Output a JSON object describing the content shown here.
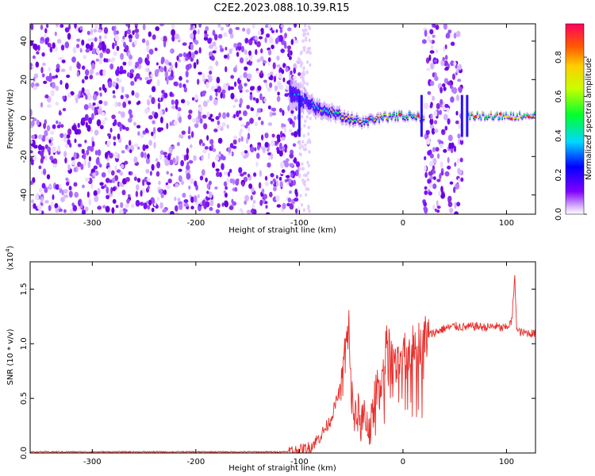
{
  "title": "C2E2.2023.088.10.39.R15",
  "chart_data": [
    {
      "type": "heatmap",
      "xlabel": "Height of straight line (km)",
      "ylabel": "Frequency (Hz)",
      "xlim": [
        -360,
        128
      ],
      "ylim": [
        -50,
        49
      ],
      "xticks": [
        -300,
        -200,
        -100,
        0,
        100
      ],
      "yticks": [
        -40,
        -20,
        0,
        20,
        40
      ],
      "colorbar": {
        "label": "Normalized spectral amplitude",
        "range": [
          0.0,
          0.97
        ],
        "ticks": [
          "0.0",
          "0.2",
          "0.4",
          "0.6",
          "0.8"
        ],
        "colors": [
          "#ffffff",
          "#7a00ff",
          "#0000ff",
          "#00d9ff",
          "#00ff2e",
          "#c8ff00",
          "#ffcc00",
          "#ff5a00",
          "#ff0060"
        ]
      },
      "noise_regions_km": [
        [
          -360,
          -100
        ],
        [
          20,
          57
        ]
      ],
      "signal_track": {
        "x": [
          -110,
          -100,
          -90,
          -80,
          -70,
          -60,
          -50,
          -40,
          -30,
          -20,
          -10,
          0,
          10,
          18,
          62,
          80,
          100,
          128
        ],
        "freq_hz": [
          14,
          10,
          7,
          4,
          3,
          1,
          -1,
          -2,
          -1,
          0,
          1,
          1,
          1,
          0,
          1,
          1,
          1,
          1
        ],
        "spread_hz": [
          18,
          12,
          10,
          9,
          8,
          7,
          6,
          5,
          5,
          4,
          4,
          4,
          4,
          4,
          3,
          3,
          3,
          3
        ]
      },
      "vertical_streaks_km": [
        -100,
        18,
        57,
        62
      ]
    },
    {
      "type": "line",
      "xlabel": "Height of straight line (km)",
      "ylabel": "SNR (10 * v/v)",
      "multiplier_label": "(x10",
      "multiplier_exponent": "4",
      "xlim": [
        -360,
        128
      ],
      "ylim": [
        0,
        1.75
      ],
      "xticks": [
        -300,
        -200,
        -100,
        0,
        100
      ],
      "yticks": [
        "0.0",
        "0.5",
        "1.0",
        "1.5"
      ],
      "series": [
        {
          "color": "#e8302c",
          "x": [
            -360,
            -300,
            -200,
            -120,
            -100,
            -90,
            -80,
            -70,
            -60,
            -55,
            -52,
            -50,
            -45,
            -40,
            -35,
            -30,
            -25,
            -20,
            -15,
            -10,
            -5,
            0,
            5,
            10,
            15,
            20,
            25,
            30,
            40,
            50,
            60,
            70,
            80,
            90,
            95,
            100,
            105,
            108,
            110,
            115,
            120,
            128
          ],
          "y": [
            0.01,
            0.01,
            0.01,
            0.01,
            0.02,
            0.05,
            0.15,
            0.3,
            0.6,
            0.95,
            1.2,
            0.5,
            0.35,
            0.3,
            0.25,
            0.28,
            0.6,
            0.7,
            1.05,
            0.8,
            0.75,
            0.85,
            0.92,
            1.05,
            1.0,
            1.05,
            1.08,
            1.1,
            1.14,
            1.16,
            1.15,
            1.16,
            1.15,
            1.16,
            1.14,
            1.15,
            1.2,
            1.6,
            1.12,
            1.1,
            1.1,
            1.09
          ]
        }
      ]
    }
  ]
}
